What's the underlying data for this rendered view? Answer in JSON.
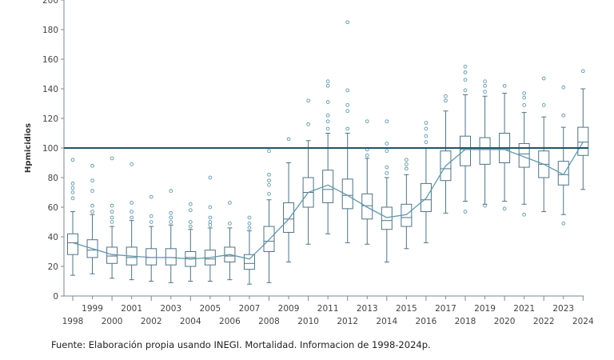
{
  "caption": "Fuente: Elaboración propia usando INEGI. Mortalidad. Informacion de 1998-2024p.",
  "chart_data": {
    "type": "box",
    "title": "",
    "xlabel": "",
    "ylabel": "Hpmicidios",
    "ylim": [
      0,
      200
    ],
    "yticks": [
      0,
      20,
      40,
      60,
      80,
      100,
      120,
      140,
      160,
      180,
      200
    ],
    "reference_line": 100,
    "colors": {
      "box": "#4f7384",
      "trend": "#5f97ac",
      "reference": "#1f5568",
      "axis": "#7a8a92"
    },
    "categories": [
      "1998",
      "1999",
      "2000",
      "2001",
      "2002",
      "2003",
      "2004",
      "2005",
      "2006",
      "2007",
      "2008",
      "2009",
      "2010",
      "2011",
      "2012",
      "2013",
      "2014",
      "2015",
      "2016",
      "2017",
      "2018",
      "2019",
      "2020",
      "2021",
      "2022",
      "2023",
      "2024"
    ],
    "boxes": [
      {
        "year": "1998",
        "min": 14,
        "q1": 28,
        "median": 36,
        "q3": 42,
        "max": 57,
        "outliers": [
          66,
          70,
          73,
          76,
          92
        ]
      },
      {
        "year": "1999",
        "min": 15,
        "q1": 26,
        "median": 31,
        "q3": 38,
        "max": 55,
        "outliers": [
          57,
          61,
          71,
          78,
          88
        ]
      },
      {
        "year": "2000",
        "min": 12,
        "q1": 22,
        "median": 27,
        "q3": 33,
        "max": 47,
        "outliers": [
          50,
          53,
          57,
          61,
          93
        ]
      },
      {
        "year": "2001",
        "min": 11,
        "q1": 21,
        "median": 26,
        "q3": 33,
        "max": 51,
        "outliers": [
          53,
          57,
          63,
          89
        ]
      },
      {
        "year": "2002",
        "min": 10,
        "q1": 21,
        "median": 26,
        "q3": 32,
        "max": 47,
        "outliers": [
          50,
          54,
          67
        ]
      },
      {
        "year": "2003",
        "min": 9,
        "q1": 21,
        "median": 26,
        "q3": 32,
        "max": 48,
        "outliers": [
          50,
          53,
          56,
          71
        ]
      },
      {
        "year": "2004",
        "min": 10,
        "q1": 20,
        "median": 26,
        "q3": 30,
        "max": 45,
        "outliers": [
          47,
          50,
          58,
          62
        ]
      },
      {
        "year": "2005",
        "min": 10,
        "q1": 21,
        "median": 25,
        "q3": 31,
        "max": 46,
        "outliers": [
          48,
          50,
          53,
          60,
          80
        ]
      },
      {
        "year": "2006",
        "min": 11,
        "q1": 23,
        "median": 27,
        "q3": 33,
        "max": 46,
        "outliers": [
          49,
          63
        ]
      },
      {
        "year": "2007",
        "min": 8,
        "q1": 18,
        "median": 22,
        "q3": 28,
        "max": 44,
        "outliers": [
          46,
          49,
          53
        ]
      },
      {
        "year": "2008",
        "min": 9,
        "q1": 30,
        "median": 37,
        "q3": 47,
        "max": 65,
        "outliers": [
          69,
          75,
          78,
          82,
          98
        ]
      },
      {
        "year": "2009",
        "min": 23,
        "q1": 43,
        "median": 52,
        "q3": 63,
        "max": 90,
        "outliers": [
          106
        ]
      },
      {
        "year": "2010",
        "min": 35,
        "q1": 60,
        "median": 70,
        "q3": 80,
        "max": 105,
        "outliers": [
          116,
          132
        ]
      },
      {
        "year": "2011",
        "min": 42,
        "q1": 63,
        "median": 72,
        "q3": 85,
        "max": 110,
        "outliers": [
          113,
          118,
          122,
          131,
          142,
          145
        ]
      },
      {
        "year": "2012",
        "min": 36,
        "q1": 59,
        "median": 68,
        "q3": 79,
        "max": 110,
        "outliers": [
          113,
          125,
          129,
          139,
          185
        ]
      },
      {
        "year": "2013",
        "min": 35,
        "q1": 52,
        "median": 61,
        "q3": 69,
        "max": 93,
        "outliers": [
          95,
          99,
          118
        ]
      },
      {
        "year": "2014",
        "min": 23,
        "q1": 45,
        "median": 51,
        "q3": 60,
        "max": 80,
        "outliers": [
          83,
          87,
          98,
          103,
          118
        ]
      },
      {
        "year": "2015",
        "min": 32,
        "q1": 47,
        "median": 53,
        "q3": 62,
        "max": 82,
        "outliers": [
          86,
          89,
          92
        ]
      },
      {
        "year": "2016",
        "min": 36,
        "q1": 57,
        "median": 65,
        "q3": 76,
        "max": 100,
        "outliers": [
          104,
          108,
          113,
          117
        ]
      },
      {
        "year": "2017",
        "min": 56,
        "q1": 78,
        "median": 86,
        "q3": 98,
        "max": 125,
        "outliers": [
          132,
          135
        ]
      },
      {
        "year": "2018",
        "min": 64,
        "q1": 88,
        "median": 99,
        "q3": 108,
        "max": 136,
        "outliers": [
          57,
          139,
          146,
          151,
          155
        ]
      },
      {
        "year": "2019",
        "min": 62,
        "q1": 89,
        "median": 99,
        "q3": 107,
        "max": 135,
        "outliers": [
          61,
          138,
          142,
          145
        ]
      },
      {
        "year": "2020",
        "min": 64,
        "q1": 90,
        "median": 99,
        "q3": 110,
        "max": 137,
        "outliers": [
          59,
          142
        ]
      },
      {
        "year": "2021",
        "min": 62,
        "q1": 87,
        "median": 96,
        "q3": 103,
        "max": 124,
        "outliers": [
          55,
          129,
          134,
          137
        ]
      },
      {
        "year": "2022",
        "min": 57,
        "q1": 80,
        "median": 89,
        "q3": 98,
        "max": 121,
        "outliers": [
          129,
          147
        ]
      },
      {
        "year": "2023",
        "min": 55,
        "q1": 75,
        "median": 82,
        "q3": 91,
        "max": 114,
        "outliers": [
          49,
          122,
          141
        ]
      },
      {
        "year": "2024",
        "min": 72,
        "q1": 95,
        "median": 104,
        "q3": 114,
        "max": 140,
        "outliers": [
          152
        ]
      }
    ],
    "trend": [
      36,
      32,
      28,
      27,
      26,
      26,
      25,
      26,
      28,
      25,
      38,
      52,
      70,
      75,
      68,
      60,
      53,
      55,
      66,
      88,
      99,
      99,
      99,
      94,
      89,
      82,
      104
    ]
  }
}
